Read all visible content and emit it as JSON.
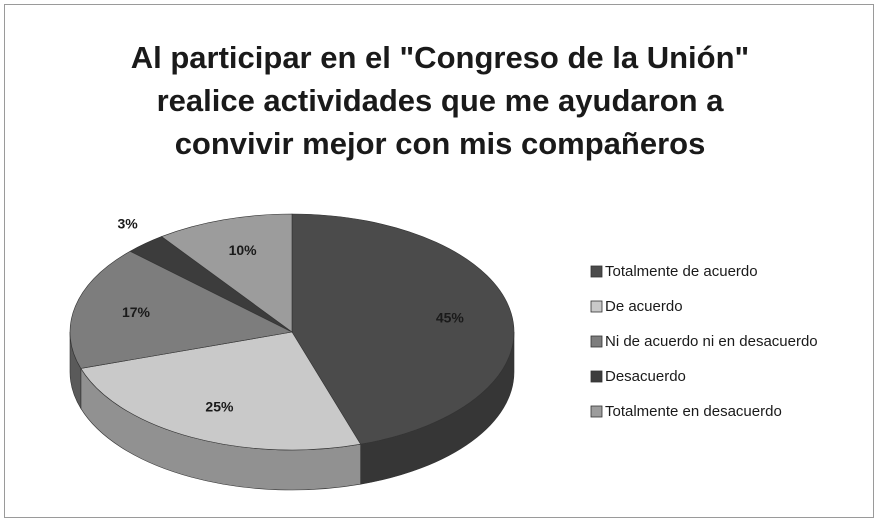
{
  "chart_data": {
    "type": "pie3d",
    "title": "Al participar en el \"Congreso de la Unión\"\nrealice actividades que me ayudaron a\nconvivir mejor con mis compañeros",
    "categories": [
      "Totalmente de acuerdo",
      "De acuerdo",
      "Ni de acuerdo ni en desacuerdo",
      "Desacuerdo",
      "Totalmente en desacuerdo"
    ],
    "values": [
      45,
      25,
      17,
      3,
      10
    ],
    "value_labels": [
      "45%",
      "25%",
      "17%",
      "3%",
      "10%"
    ],
    "colors": [
      "#4b4b4b",
      "#c9c9c9",
      "#7d7d7d",
      "#3c3c3c",
      "#9c9c9c"
    ],
    "legend": "right"
  }
}
